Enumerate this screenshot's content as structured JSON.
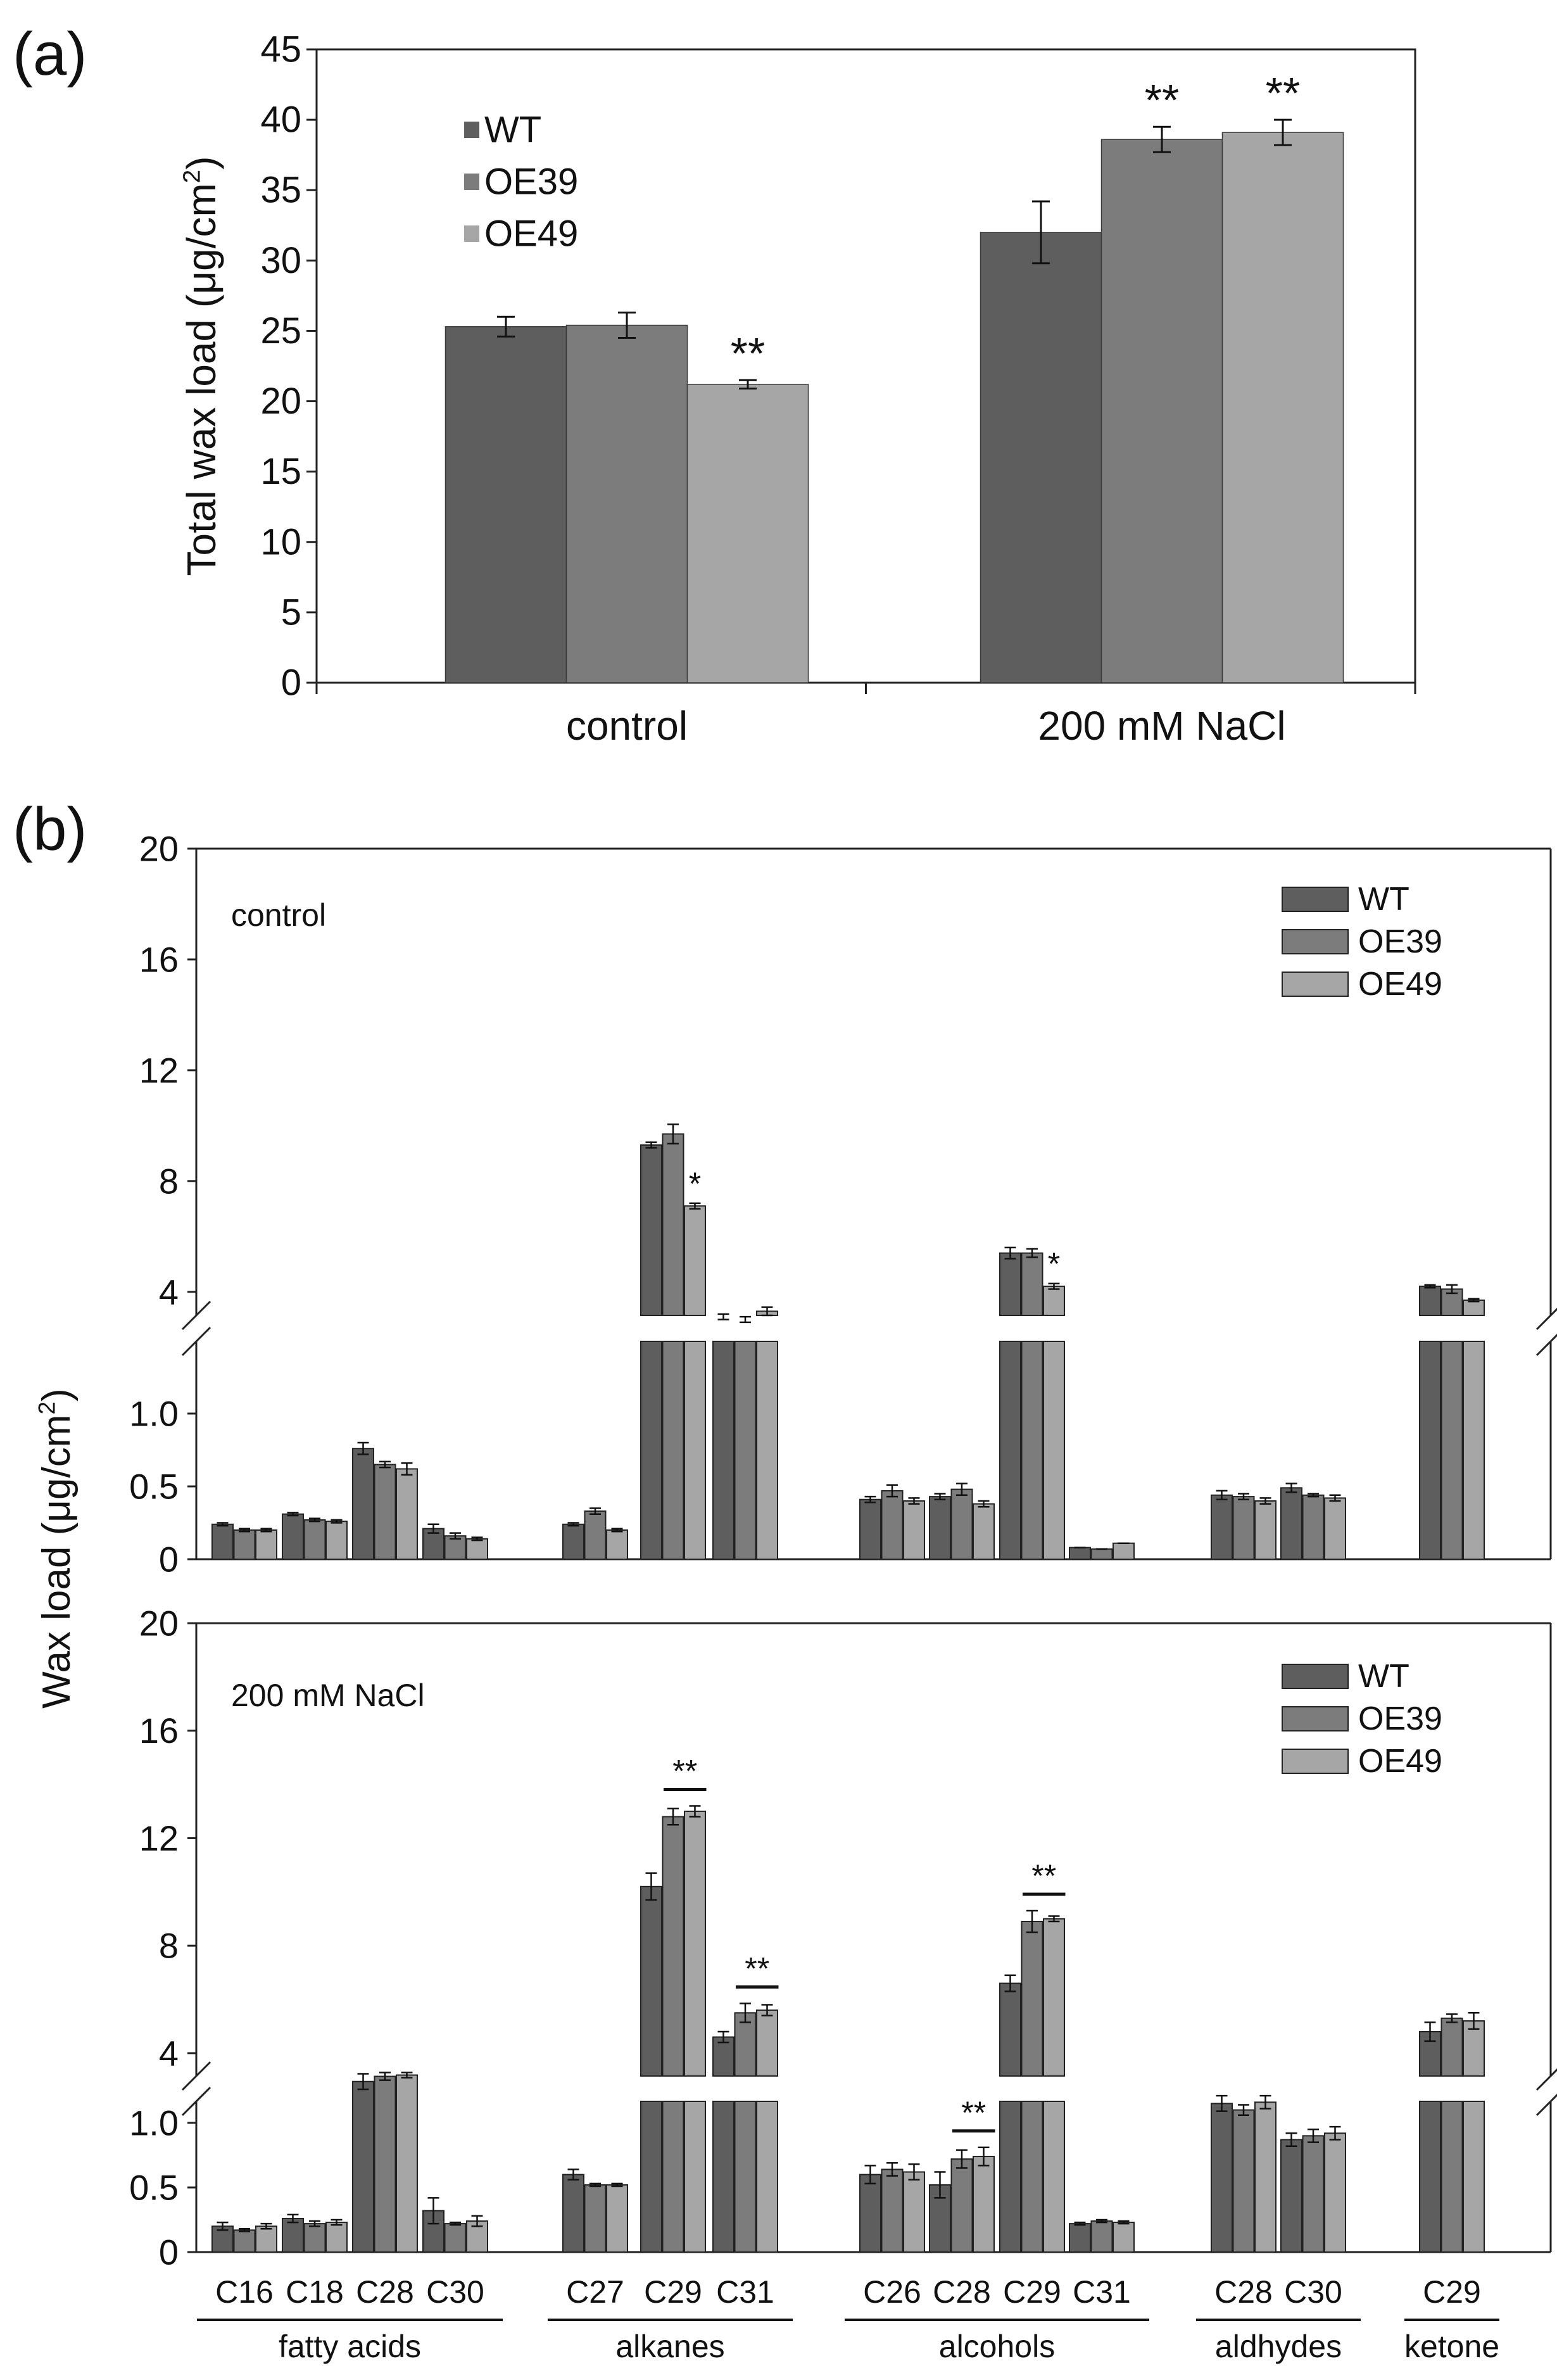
{
  "panel_labels": {
    "a": "(a)",
    "b": "(b)"
  },
  "colors": {
    "WT": "#5e5e5e",
    "OE39": "#7c7c7c",
    "OE49": "#a6a6a6",
    "axis": "#222222"
  },
  "chart_data": [
    {
      "id": "a",
      "type": "bar",
      "categories": [
        "control",
        "200 mM NaCl"
      ],
      "ylabel": "Total wax load (μg/cm²)",
      "ylabel_parts": [
        "Total wax load (μg/cm",
        "2",
        ")"
      ],
      "ylim": [
        0,
        45
      ],
      "yticks": [
        0,
        5,
        10,
        15,
        20,
        25,
        30,
        35,
        40,
        45
      ],
      "legend": {
        "position": "top-left",
        "entries": [
          "WT",
          "OE39",
          "OE49"
        ]
      },
      "series": [
        {
          "name": "WT",
          "values": [
            25.3,
            32.0
          ],
          "errors": [
            0.7,
            2.2
          ],
          "marks": [
            "",
            ""
          ]
        },
        {
          "name": "OE39",
          "values": [
            25.4,
            38.6
          ],
          "errors": [
            0.9,
            0.9
          ],
          "marks": [
            "",
            "**"
          ]
        },
        {
          "name": "OE49",
          "values": [
            21.2,
            39.1
          ],
          "errors": [
            0.3,
            0.9
          ],
          "marks": [
            "**",
            "**"
          ]
        }
      ]
    },
    {
      "id": "b-control",
      "type": "bar",
      "panel_text": "control",
      "axis_break": {
        "lower_range": [
          0,
          1.0
        ],
        "upper_range": [
          4,
          20
        ]
      },
      "lower_ticks": [
        "0",
        "0.5",
        "1.0"
      ],
      "upper_ticks": [
        "4",
        "8",
        "12",
        "16",
        "20"
      ],
      "legend": {
        "position": "top-right",
        "entries": [
          "WT",
          "OE39",
          "OE49"
        ]
      },
      "categories": [
        "C16",
        "C18",
        "C28",
        "C30",
        "C27",
        "C29",
        "C31",
        "C26",
        "C28",
        "C29",
        "C31",
        "C28",
        "C30",
        "C29"
      ],
      "series": [
        {
          "name": "WT",
          "values": [
            0.24,
            0.31,
            0.76,
            0.21,
            0.24,
            9.3,
            3.1,
            0.41,
            0.43,
            5.4,
            0.08,
            0.44,
            0.49,
            4.2
          ],
          "errors": [
            0.01,
            0.01,
            0.04,
            0.03,
            0.01,
            0.1,
            0.1,
            0.02,
            0.02,
            0.2,
            0.0,
            0.03,
            0.03,
            0.05
          ]
        },
        {
          "name": "OE39",
          "values": [
            0.2,
            0.27,
            0.65,
            0.16,
            0.33,
            9.7,
            3.0,
            0.47,
            0.48,
            5.4,
            0.07,
            0.43,
            0.44,
            4.1
          ],
          "errors": [
            0.01,
            0.01,
            0.02,
            0.02,
            0.02,
            0.35,
            0.1,
            0.04,
            0.04,
            0.15,
            0.0,
            0.02,
            0.01,
            0.15
          ]
        },
        {
          "name": "OE49",
          "values": [
            0.2,
            0.26,
            0.62,
            0.14,
            0.2,
            7.1,
            3.3,
            0.4,
            0.38,
            4.2,
            0.11,
            0.4,
            0.42,
            3.7
          ],
          "errors": [
            0.01,
            0.01,
            0.04,
            0.01,
            0.01,
            0.1,
            0.15,
            0.02,
            0.02,
            0.1,
            0.0,
            0.02,
            0.02,
            0.05
          ]
        }
      ],
      "significance": [
        {
          "text": "*",
          "category_index": 5,
          "series": "OE49",
          "line": false
        },
        {
          "text": "*",
          "category_index": 9,
          "series": "OE49",
          "line": false
        }
      ]
    },
    {
      "id": "b-nacl",
      "type": "bar",
      "panel_text": "200 mM NaCl",
      "axis_break": {
        "lower_range": [
          0,
          1.0
        ],
        "upper_range": [
          4,
          20
        ]
      },
      "lower_ticks": [
        "0",
        "0.5",
        "1.0"
      ],
      "upper_ticks": [
        "4",
        "8",
        "12",
        "16",
        "20"
      ],
      "legend": {
        "position": "top-right",
        "entries": [
          "WT",
          "OE39",
          "OE49"
        ]
      },
      "categories": [
        "C16",
        "C18",
        "C28",
        "C30",
        "C27",
        "C29",
        "C31",
        "C26",
        "C28",
        "C29",
        "C31",
        "C28",
        "C30",
        "C29"
      ],
      "series": [
        {
          "name": "WT",
          "values": [
            0.2,
            0.26,
            1.32,
            0.32,
            0.6,
            10.2,
            4.6,
            0.6,
            0.52,
            6.6,
            0.22,
            1.15,
            0.87,
            4.8
          ],
          "errors": [
            0.03,
            0.03,
            0.06,
            0.1,
            0.04,
            0.5,
            0.2,
            0.07,
            0.1,
            0.3,
            0.01,
            0.06,
            0.05,
            0.35
          ]
        },
        {
          "name": "OE39",
          "values": [
            0.17,
            0.22,
            1.36,
            0.22,
            0.52,
            12.8,
            5.5,
            0.64,
            0.72,
            8.9,
            0.24,
            1.1,
            0.9,
            5.3
          ],
          "errors": [
            0.01,
            0.02,
            0.03,
            0.01,
            0.01,
            0.3,
            0.35,
            0.05,
            0.07,
            0.4,
            0.01,
            0.04,
            0.05,
            0.15
          ]
        },
        {
          "name": "OE49",
          "values": [
            0.2,
            0.23,
            1.37,
            0.24,
            0.52,
            13.0,
            5.6,
            0.62,
            0.74,
            9.0,
            0.23,
            1.16,
            0.92,
            5.2
          ],
          "errors": [
            0.02,
            0.02,
            0.02,
            0.04,
            0.01,
            0.2,
            0.2,
            0.06,
            0.07,
            0.1,
            0.01,
            0.05,
            0.05,
            0.3
          ]
        }
      ],
      "significance": [
        {
          "text": "**",
          "category_index": 5,
          "series": [
            "OE39",
            "OE49"
          ],
          "line": true
        },
        {
          "text": "**",
          "category_index": 6,
          "series": [
            "OE39",
            "OE49"
          ],
          "line": true
        },
        {
          "text": "**",
          "category_index": 8,
          "series": [
            "OE39",
            "OE49"
          ],
          "line": true
        },
        {
          "text": "**",
          "category_index": 9,
          "series": [
            "OE39",
            "OE49"
          ],
          "line": true
        }
      ]
    }
  ],
  "shared_ylabel_b_parts": [
    "Wax load (μg/cm",
    "2",
    ")"
  ],
  "category_groups": [
    {
      "label": "fatty acids",
      "members": [
        0,
        1,
        2,
        3
      ]
    },
    {
      "label": "alkanes",
      "members": [
        4,
        5,
        6
      ]
    },
    {
      "label": "alcohols",
      "members": [
        7,
        8,
        9,
        10
      ]
    },
    {
      "label": "aldhydes",
      "members": [
        11,
        12
      ]
    },
    {
      "label": "ketone",
      "members": [
        13
      ]
    }
  ]
}
